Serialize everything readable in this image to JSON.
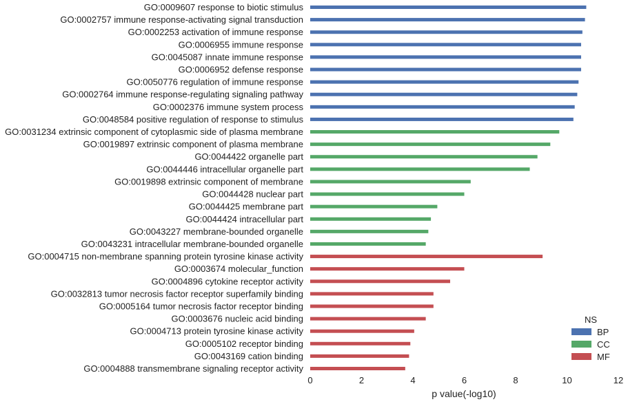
{
  "chart_data": {
    "type": "bar",
    "orientation": "horizontal",
    "title": "",
    "xlabel": "p value(-log10)",
    "ylabel": "",
    "xlim": [
      0,
      12
    ],
    "xticks": [
      0,
      2,
      4,
      6,
      8,
      10,
      12
    ],
    "grid": false,
    "legend": {
      "title": "NS",
      "placement": "bottom-right",
      "entries": [
        {
          "name": "BP",
          "color": "#4c72b0"
        },
        {
          "name": "CC",
          "color": "#55a868"
        },
        {
          "name": "MF",
          "color": "#c44e52"
        }
      ]
    },
    "categories": [
      {
        "label": "GO:0009607 response to biotic stimulus",
        "value": 10.75,
        "ns": "BP"
      },
      {
        "label": "GO:0002757 immune response-activating signal transduction",
        "value": 10.7,
        "ns": "BP"
      },
      {
        "label": "GO:0002253 activation of immune response",
        "value": 10.6,
        "ns": "BP"
      },
      {
        "label": "GO:0006955 immune response",
        "value": 10.55,
        "ns": "BP"
      },
      {
        "label": "GO:0045087 innate immune response",
        "value": 10.55,
        "ns": "BP"
      },
      {
        "label": "GO:0006952 defense response",
        "value": 10.55,
        "ns": "BP"
      },
      {
        "label": "GO:0050776 regulation of immune response",
        "value": 10.45,
        "ns": "BP"
      },
      {
        "label": "GO:0002764 immune response-regulating signaling pathway",
        "value": 10.4,
        "ns": "BP"
      },
      {
        "label": "GO:0002376 immune system process",
        "value": 10.3,
        "ns": "BP"
      },
      {
        "label": "GO:0048584 positive regulation of response to stimulus",
        "value": 10.25,
        "ns": "BP"
      },
      {
        "label": "GO:0031234 extrinsic component of cytoplasmic side of plasma membrane",
        "value": 9.7,
        "ns": "CC"
      },
      {
        "label": "GO:0019897 extrinsic component of plasma membrane",
        "value": 9.35,
        "ns": "CC"
      },
      {
        "label": "GO:0044422 organelle part",
        "value": 8.85,
        "ns": "CC"
      },
      {
        "label": "GO:0044446 intracellular organelle part",
        "value": 8.55,
        "ns": "CC"
      },
      {
        "label": "GO:0019898 extrinsic component of membrane",
        "value": 6.25,
        "ns": "CC"
      },
      {
        "label": "GO:0044428 nuclear part",
        "value": 6.0,
        "ns": "CC"
      },
      {
        "label": "GO:0044425 membrane part",
        "value": 4.95,
        "ns": "CC"
      },
      {
        "label": "GO:0044424 intracellular part",
        "value": 4.7,
        "ns": "CC"
      },
      {
        "label": "GO:0043227 membrane-bounded organelle",
        "value": 4.6,
        "ns": "CC"
      },
      {
        "label": "GO:0043231 intracellular membrane-bounded organelle",
        "value": 4.5,
        "ns": "CC"
      },
      {
        "label": "GO:0004715 non-membrane spanning protein tyrosine kinase activity",
        "value": 9.05,
        "ns": "MF"
      },
      {
        "label": "GO:0003674 molecular_function",
        "value": 6.0,
        "ns": "MF"
      },
      {
        "label": "GO:0004896 cytokine receptor activity",
        "value": 5.45,
        "ns": "MF"
      },
      {
        "label": "GO:0032813 tumor necrosis factor receptor superfamily binding",
        "value": 4.8,
        "ns": "MF"
      },
      {
        "label": "GO:0005164 tumor necrosis factor receptor binding",
        "value": 4.8,
        "ns": "MF"
      },
      {
        "label": "GO:0003676 nucleic acid binding",
        "value": 4.5,
        "ns": "MF"
      },
      {
        "label": "GO:0004713 protein tyrosine kinase activity",
        "value": 4.05,
        "ns": "MF"
      },
      {
        "label": "GO:0005102 receptor binding",
        "value": 3.9,
        "ns": "MF"
      },
      {
        "label": "GO:0043169 cation binding",
        "value": 3.85,
        "ns": "MF"
      },
      {
        "label": "GO:0004888 transmembrane signaling receptor activity",
        "value": 3.7,
        "ns": "MF"
      }
    ]
  }
}
